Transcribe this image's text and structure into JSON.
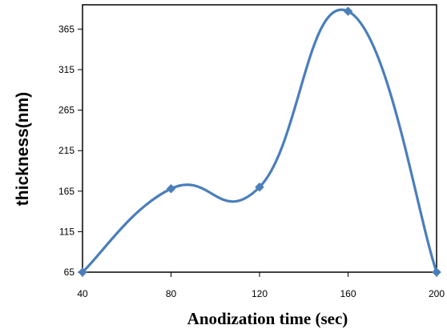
{
  "chart_data": {
    "type": "line",
    "title": "",
    "xlabel": "Anodization time (sec)",
    "ylabel": "thickness(nm)",
    "x": [
      40,
      80,
      120,
      160,
      200
    ],
    "series": [
      {
        "values": [
          65,
          168,
          170,
          387,
          65
        ],
        "color": "#4a7ebb",
        "marker": "diamond",
        "smooth": true
      }
    ],
    "xlim": [
      40,
      200
    ],
    "ylim": [
      65,
      395
    ],
    "xticks": [
      40,
      80,
      120,
      160,
      200
    ],
    "xtick_labels": [
      "40",
      "80",
      "120",
      "160",
      "200"
    ],
    "yticks": [
      65,
      115,
      165,
      215,
      265,
      315,
      365
    ],
    "ytick_labels": [
      "65",
      "115",
      "165",
      "215",
      "265",
      "315",
      "365"
    ],
    "grid": false,
    "legend": "none"
  }
}
